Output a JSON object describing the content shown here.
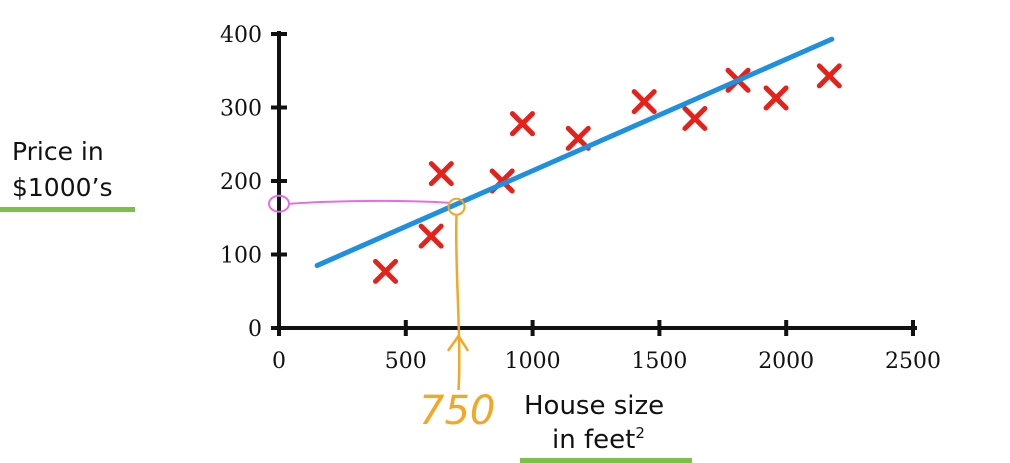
{
  "chart_data": {
    "type": "scatter",
    "title": "",
    "xlabel": "House size in feet²",
    "ylabel": "Price in $1000’s",
    "xlim": [
      0,
      2500
    ],
    "ylim": [
      0,
      400
    ],
    "xticks": [
      "0",
      "500",
      "1000",
      "1500",
      "2000",
      "2500"
    ],
    "yticks": [
      "0",
      "100",
      "200",
      "300",
      "400"
    ],
    "points": [
      {
        "x": 420,
        "y": 77
      },
      {
        "x": 600,
        "y": 125
      },
      {
        "x": 640,
        "y": 210
      },
      {
        "x": 880,
        "y": 200
      },
      {
        "x": 960,
        "y": 278
      },
      {
        "x": 1180,
        "y": 258
      },
      {
        "x": 1440,
        "y": 308
      },
      {
        "x": 1640,
        "y": 285
      },
      {
        "x": 1810,
        "y": 337
      },
      {
        "x": 1960,
        "y": 313
      },
      {
        "x": 2170,
        "y": 343
      }
    ],
    "fit_line": {
      "x": [
        150,
        2180
      ],
      "y": [
        85,
        393
      ]
    },
    "annotation": {
      "x": 700,
      "y": 165,
      "label": "750"
    },
    "colors": {
      "points": "#e8201a",
      "line": "#1e90e0",
      "annotation_x": "#f5a623",
      "annotation_y": "#e36ee6",
      "accent_bar": "#7cc04a"
    }
  },
  "labels": {
    "ylabel_line1": "Price in",
    "ylabel_line2": "$1000’s",
    "xlabel_line1": "House size",
    "xlabel_line2": "in feet",
    "xlabel_sup": "2",
    "annotation_value": "750"
  }
}
